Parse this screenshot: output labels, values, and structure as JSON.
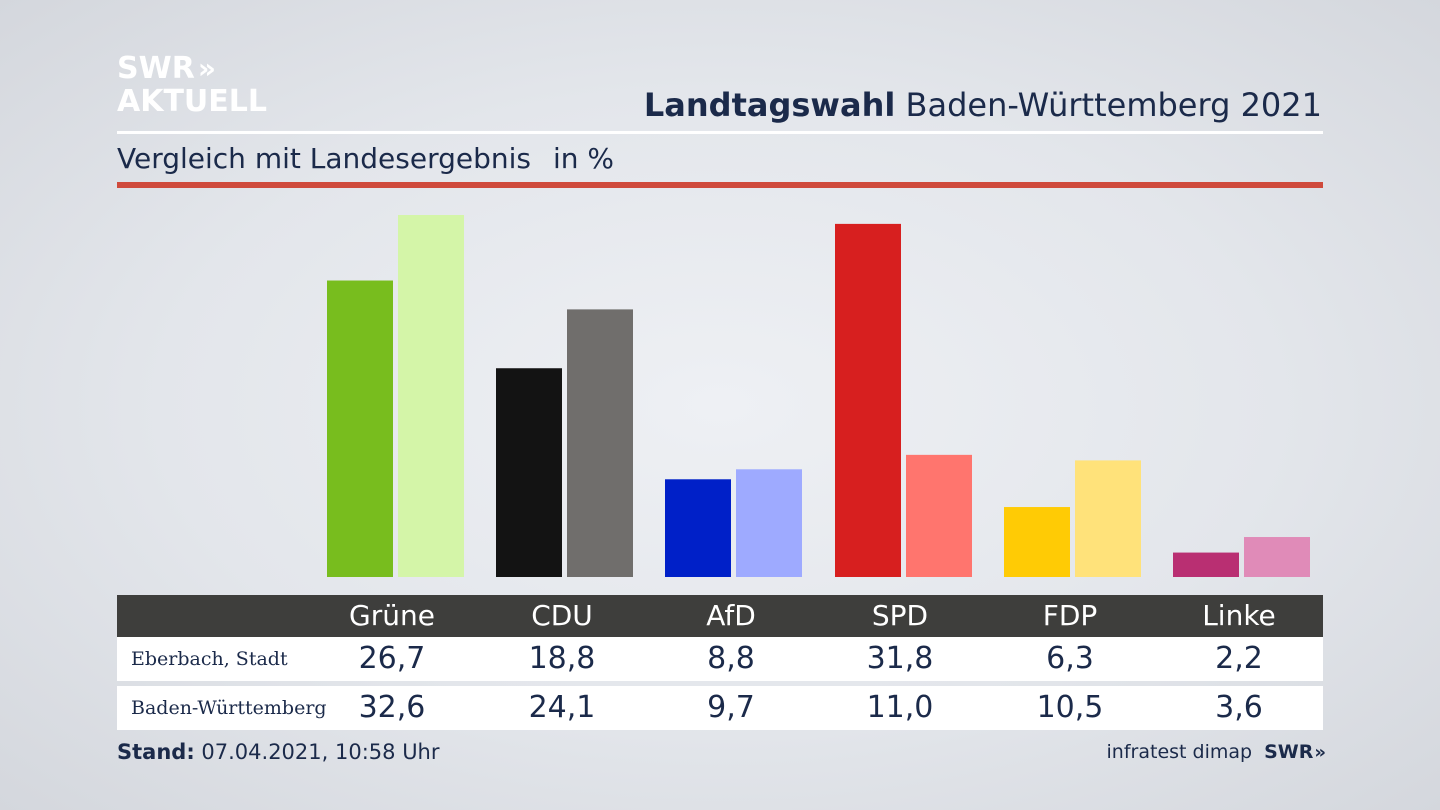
{
  "branding": {
    "logo_line1": "SWR",
    "logo_chevrons": "»",
    "logo_line2": "AKTUELL",
    "footer_source": "infratest dimap",
    "footer_logo": "SWR",
    "footer_chevrons": "»"
  },
  "header": {
    "title_bold": "Landtagswahl",
    "title_rest": "Baden-Württemberg 2021",
    "subtitle": "Vergleich mit Landesergebnis",
    "unit": "in %"
  },
  "footer": {
    "stand_label": "Stand:",
    "stand_value": "07.04.2021, 10:58 Uhr"
  },
  "colors": {
    "gruene_local": "#78bd1e",
    "gruene_state": "#d4f5a8",
    "cdu_local": "#131313",
    "cdu_state": "#706e6c",
    "afd_local": "#0020c8",
    "afd_state": "#9eaaff",
    "spd_local": "#d71f1f",
    "spd_state": "#ff756e",
    "fdp_local": "#ffcb05",
    "fdp_state": "#ffe27a",
    "linke_local": "#b92f72",
    "linke_state": "#e08bb8",
    "accent_rule": "#cf4a3c",
    "table_header": "#3e3e3c"
  },
  "chart_data": {
    "type": "bar",
    "title": "Landtagswahl Baden-Württemberg 2021",
    "subtitle": "Vergleich mit Landesergebnis",
    "ylabel": "in %",
    "xlabel": "",
    "ylim": [
      0,
      32.6
    ],
    "categories": [
      "Grüne",
      "CDU",
      "AfD",
      "SPD",
      "FDP",
      "Linke"
    ],
    "series": [
      {
        "name": "Eberbach, Stadt",
        "display": [
          "26,7",
          "18,8",
          "8,8",
          "31,8",
          "6,3",
          "2,2"
        ],
        "values": [
          26.7,
          18.8,
          8.8,
          31.8,
          6.3,
          2.2
        ]
      },
      {
        "name": "Baden-Württemberg",
        "display": [
          "32,6",
          "24,1",
          "9,7",
          "11,0",
          "10,5",
          "3,6"
        ],
        "values": [
          32.6,
          24.1,
          9.7,
          11.0,
          10.5,
          3.6
        ]
      }
    ],
    "party_colors": {
      "local": [
        "#78bd1e",
        "#131313",
        "#0020c8",
        "#d71f1f",
        "#ffcb05",
        "#b92f72"
      ],
      "state": [
        "#d4f5a8",
        "#706e6c",
        "#9eaaff",
        "#ff756e",
        "#ffe27a",
        "#e08bb8"
      ]
    },
    "grid": false
  }
}
